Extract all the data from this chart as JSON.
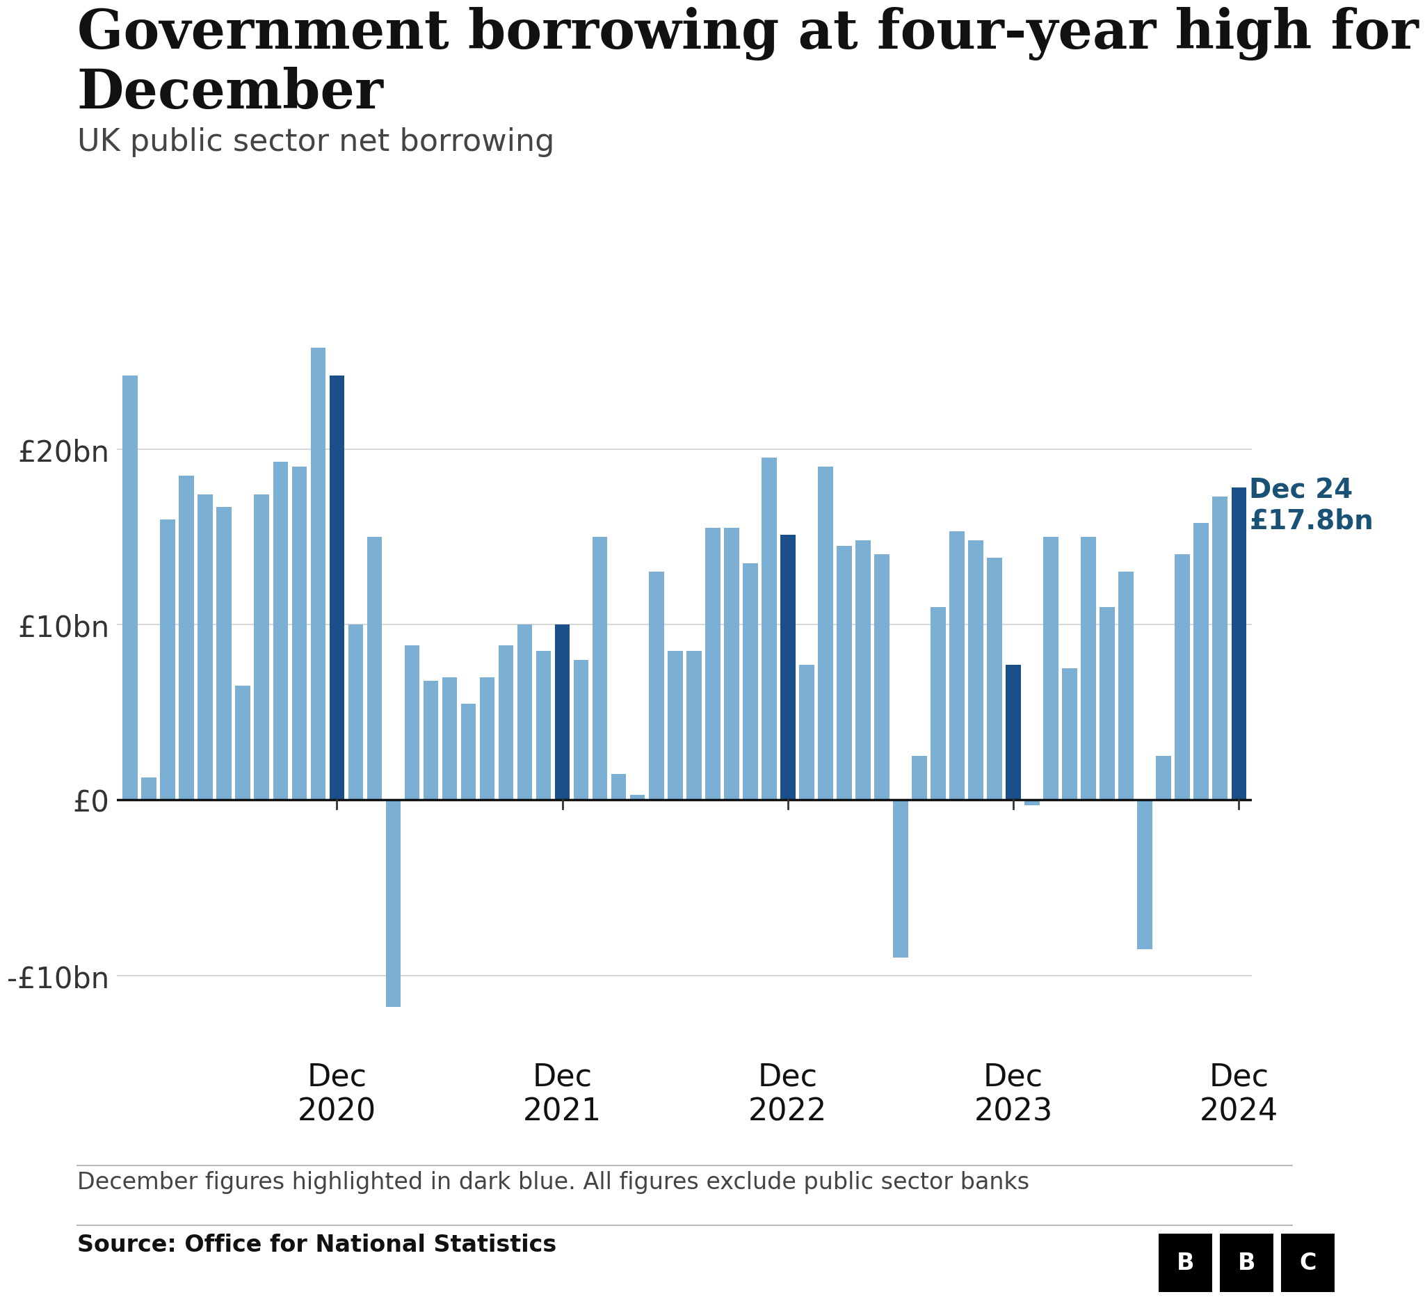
{
  "title_line1": "Government borrowing at four-year high for",
  "title_line2": "December",
  "subtitle": "UK public sector net borrowing",
  "annotation_line1": "Dec 24",
  "annotation_line2": "£17.8bn",
  "annotation_color": "#1a5276",
  "source": "Source: Office for National Statistics",
  "footnote": "December figures highlighted in dark blue. All figures exclude public sector banks",
  "light_blue": "#7bafd4",
  "dark_blue": "#1a4f8a",
  "background": "#ffffff",
  "values": [
    24.2,
    1.3,
    16.0,
    18.5,
    17.4,
    16.7,
    6.5,
    17.4,
    19.3,
    19.0,
    25.8,
    24.2,
    10.0,
    15.0,
    -11.8,
    8.8,
    6.8,
    7.0,
    5.5,
    7.0,
    8.8,
    10.0,
    8.5,
    10.0,
    8.0,
    15.0,
    1.5,
    0.3,
    13.0,
    8.5,
    8.5,
    15.5,
    15.5,
    13.5,
    19.5,
    15.1,
    7.7,
    19.0,
    14.5,
    14.8,
    14.0,
    -9.0,
    2.5,
    11.0,
    15.3,
    14.8,
    13.8,
    7.7,
    -0.3,
    15.0,
    7.5,
    15.0,
    11.0,
    13.0,
    -8.5,
    2.5,
    14.0,
    15.8,
    17.3,
    17.8
  ],
  "dec_indices": [
    11,
    23,
    35,
    47,
    59
  ],
  "ytick_values": [
    -10,
    0,
    10,
    20
  ],
  "ytick_labels": [
    "-£10bn",
    "£0",
    "£10bn",
    "£20bn"
  ],
  "ylim_low": -14.5,
  "ylim_high": 28.5,
  "dec_tick_positions": [
    11,
    23,
    35,
    47,
    59
  ],
  "dec_labels_line1": [
    "Dec",
    "Dec",
    "Dec",
    "Dec",
    "Dec"
  ],
  "dec_labels_line2": [
    "2020",
    "2021",
    "2022",
    "2023",
    "2024"
  ]
}
